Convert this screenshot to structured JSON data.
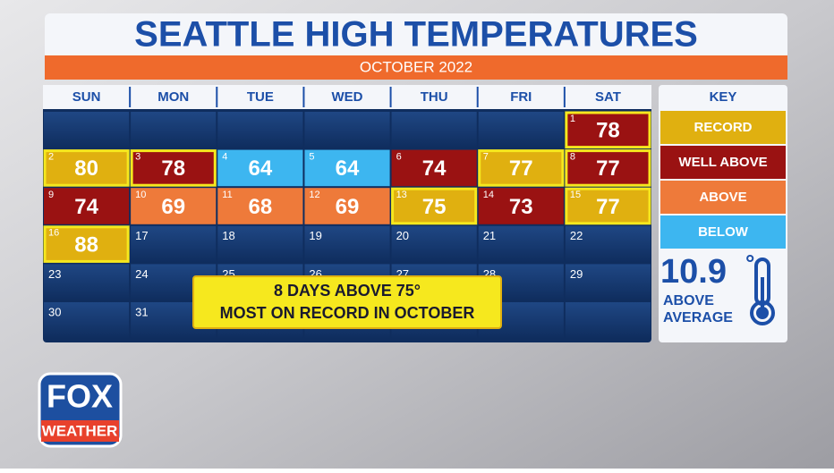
{
  "header": {
    "title": "SEATTLE HIGH TEMPERATURES",
    "subtitle": "OCTOBER 2022"
  },
  "calendar": {
    "weekdays": [
      "SUN",
      "MON",
      "TUE",
      "WED",
      "THU",
      "FRI",
      "SAT"
    ],
    "first_weekday": 6,
    "days": [
      {
        "day": 1,
        "temp": 78,
        "category": "WELL ABOVE",
        "highlight": true
      },
      {
        "day": 2,
        "temp": 80,
        "category": "RECORD",
        "highlight": true
      },
      {
        "day": 3,
        "temp": 78,
        "category": "WELL ABOVE",
        "highlight": true
      },
      {
        "day": 4,
        "temp": 64,
        "category": "BELOW"
      },
      {
        "day": 5,
        "temp": 64,
        "category": "BELOW"
      },
      {
        "day": 6,
        "temp": 74,
        "category": "WELL ABOVE"
      },
      {
        "day": 7,
        "temp": 77,
        "category": "RECORD",
        "highlight": true
      },
      {
        "day": 8,
        "temp": 77,
        "category": "WELL ABOVE",
        "highlight": true
      },
      {
        "day": 9,
        "temp": 74,
        "category": "WELL ABOVE"
      },
      {
        "day": 10,
        "temp": 69,
        "category": "ABOVE"
      },
      {
        "day": 11,
        "temp": 68,
        "category": "ABOVE"
      },
      {
        "day": 12,
        "temp": 69,
        "category": "ABOVE"
      },
      {
        "day": 13,
        "temp": 75,
        "category": "RECORD",
        "highlight": true
      },
      {
        "day": 14,
        "temp": 73,
        "category": "WELL ABOVE"
      },
      {
        "day": 15,
        "temp": 77,
        "category": "RECORD",
        "highlight": true
      },
      {
        "day": 16,
        "temp": 88,
        "category": "RECORD",
        "highlight": true
      },
      {
        "day": 17
      },
      {
        "day": 18
      },
      {
        "day": 19
      },
      {
        "day": 20
      },
      {
        "day": 21
      },
      {
        "day": 22
      },
      {
        "day": 23
      },
      {
        "day": 24
      },
      {
        "day": 25
      },
      {
        "day": 26
      },
      {
        "day": 27
      },
      {
        "day": 28
      },
      {
        "day": 29
      },
      {
        "day": 30
      },
      {
        "day": 31
      }
    ]
  },
  "key": {
    "title": "KEY",
    "items": [
      {
        "label": "RECORD",
        "color": "#e0b010"
      },
      {
        "label": "WELL ABOVE",
        "color": "#9a1212"
      },
      {
        "label": "ABOVE",
        "color": "#ee7a3a"
      },
      {
        "label": "BELOW",
        "color": "#3db6f0"
      }
    ],
    "stat": {
      "value": "10.9",
      "unit": "°",
      "label_lines": [
        "ABOVE",
        "AVERAGE"
      ]
    }
  },
  "callout": {
    "lines": [
      "8 DAYS ABOVE 75°",
      "MOST ON RECORD IN OCTOBER"
    ]
  },
  "logo": {
    "top": "FOX",
    "bottom": "WEATHER"
  }
}
